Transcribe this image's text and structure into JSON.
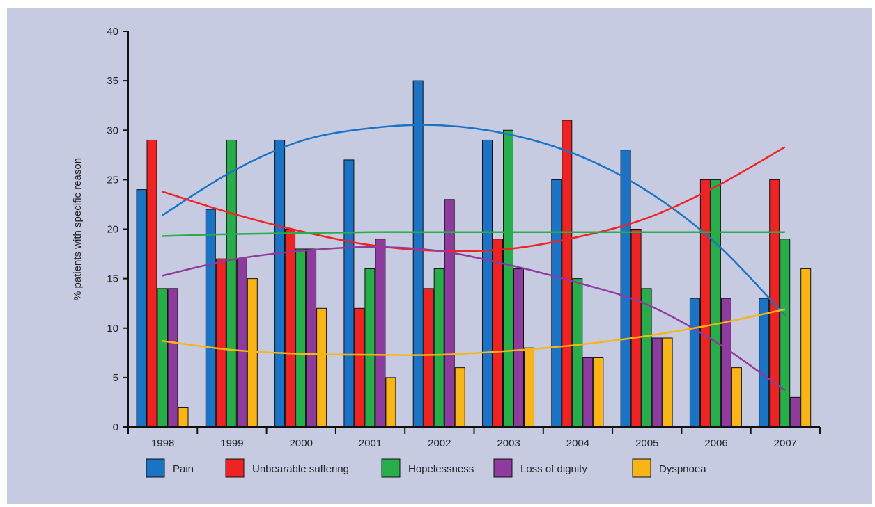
{
  "chart_data": {
    "type": "bar",
    "title": "",
    "xlabel": "",
    "ylabel": "% patients with specific reason",
    "ylim": [
      0,
      40
    ],
    "yticks": [
      0,
      5,
      10,
      15,
      20,
      25,
      30,
      35,
      40
    ],
    "categories": [
      "1998",
      "1999",
      "2000",
      "2001",
      "2002",
      "2003",
      "2004",
      "2005",
      "2006",
      "2007"
    ],
    "series": [
      {
        "name": "Pain",
        "color": "#1a73c4",
        "values": [
          24,
          22,
          29,
          27,
          35,
          29,
          25,
          28,
          13,
          13
        ]
      },
      {
        "name": "Unbearable suffering",
        "color": "#ee2424",
        "values": [
          29,
          17,
          20,
          12,
          14,
          19,
          31,
          20,
          25,
          25
        ]
      },
      {
        "name": "Hopelessness",
        "color": "#27ad4a",
        "values": [
          14,
          29,
          18,
          16,
          16,
          30,
          15,
          14,
          25,
          19
        ]
      },
      {
        "name": "Loss of dignity",
        "color": "#8e3b9e",
        "values": [
          14,
          17,
          18,
          19,
          23,
          16,
          7,
          9,
          13,
          3
        ]
      },
      {
        "name": "Dyspnoea",
        "color": "#f9b418",
        "values": [
          2,
          15,
          12,
          5,
          6,
          8,
          7,
          9,
          6,
          16
        ]
      }
    ],
    "trend_lines": [
      {
        "series": "Pain",
        "values": [
          21.4,
          25.8,
          28.9,
          30.2,
          30.5,
          29.6,
          27.5,
          23.9,
          18.6,
          11.3
        ]
      },
      {
        "series": "Unbearable suffering",
        "values": [
          23.8,
          21.6,
          19.8,
          18.4,
          17.8,
          18.0,
          19.2,
          21.1,
          24.3,
          28.3
        ]
      },
      {
        "series": "Hopelessness",
        "values": [
          19.3,
          19.5,
          19.6,
          19.7,
          19.7,
          19.7,
          19.7,
          19.7,
          19.7,
          19.7
        ]
      },
      {
        "series": "Loss of dignity",
        "values": [
          15.3,
          16.9,
          17.8,
          18.2,
          17.8,
          16.4,
          14.6,
          12.4,
          8.6,
          3.7
        ]
      },
      {
        "series": "Dyspnoea",
        "values": [
          8.7,
          7.8,
          7.4,
          7.3,
          7.3,
          7.7,
          8.3,
          9.2,
          10.4,
          11.9
        ]
      }
    ],
    "legend_position": "bottom",
    "grid": false
  }
}
